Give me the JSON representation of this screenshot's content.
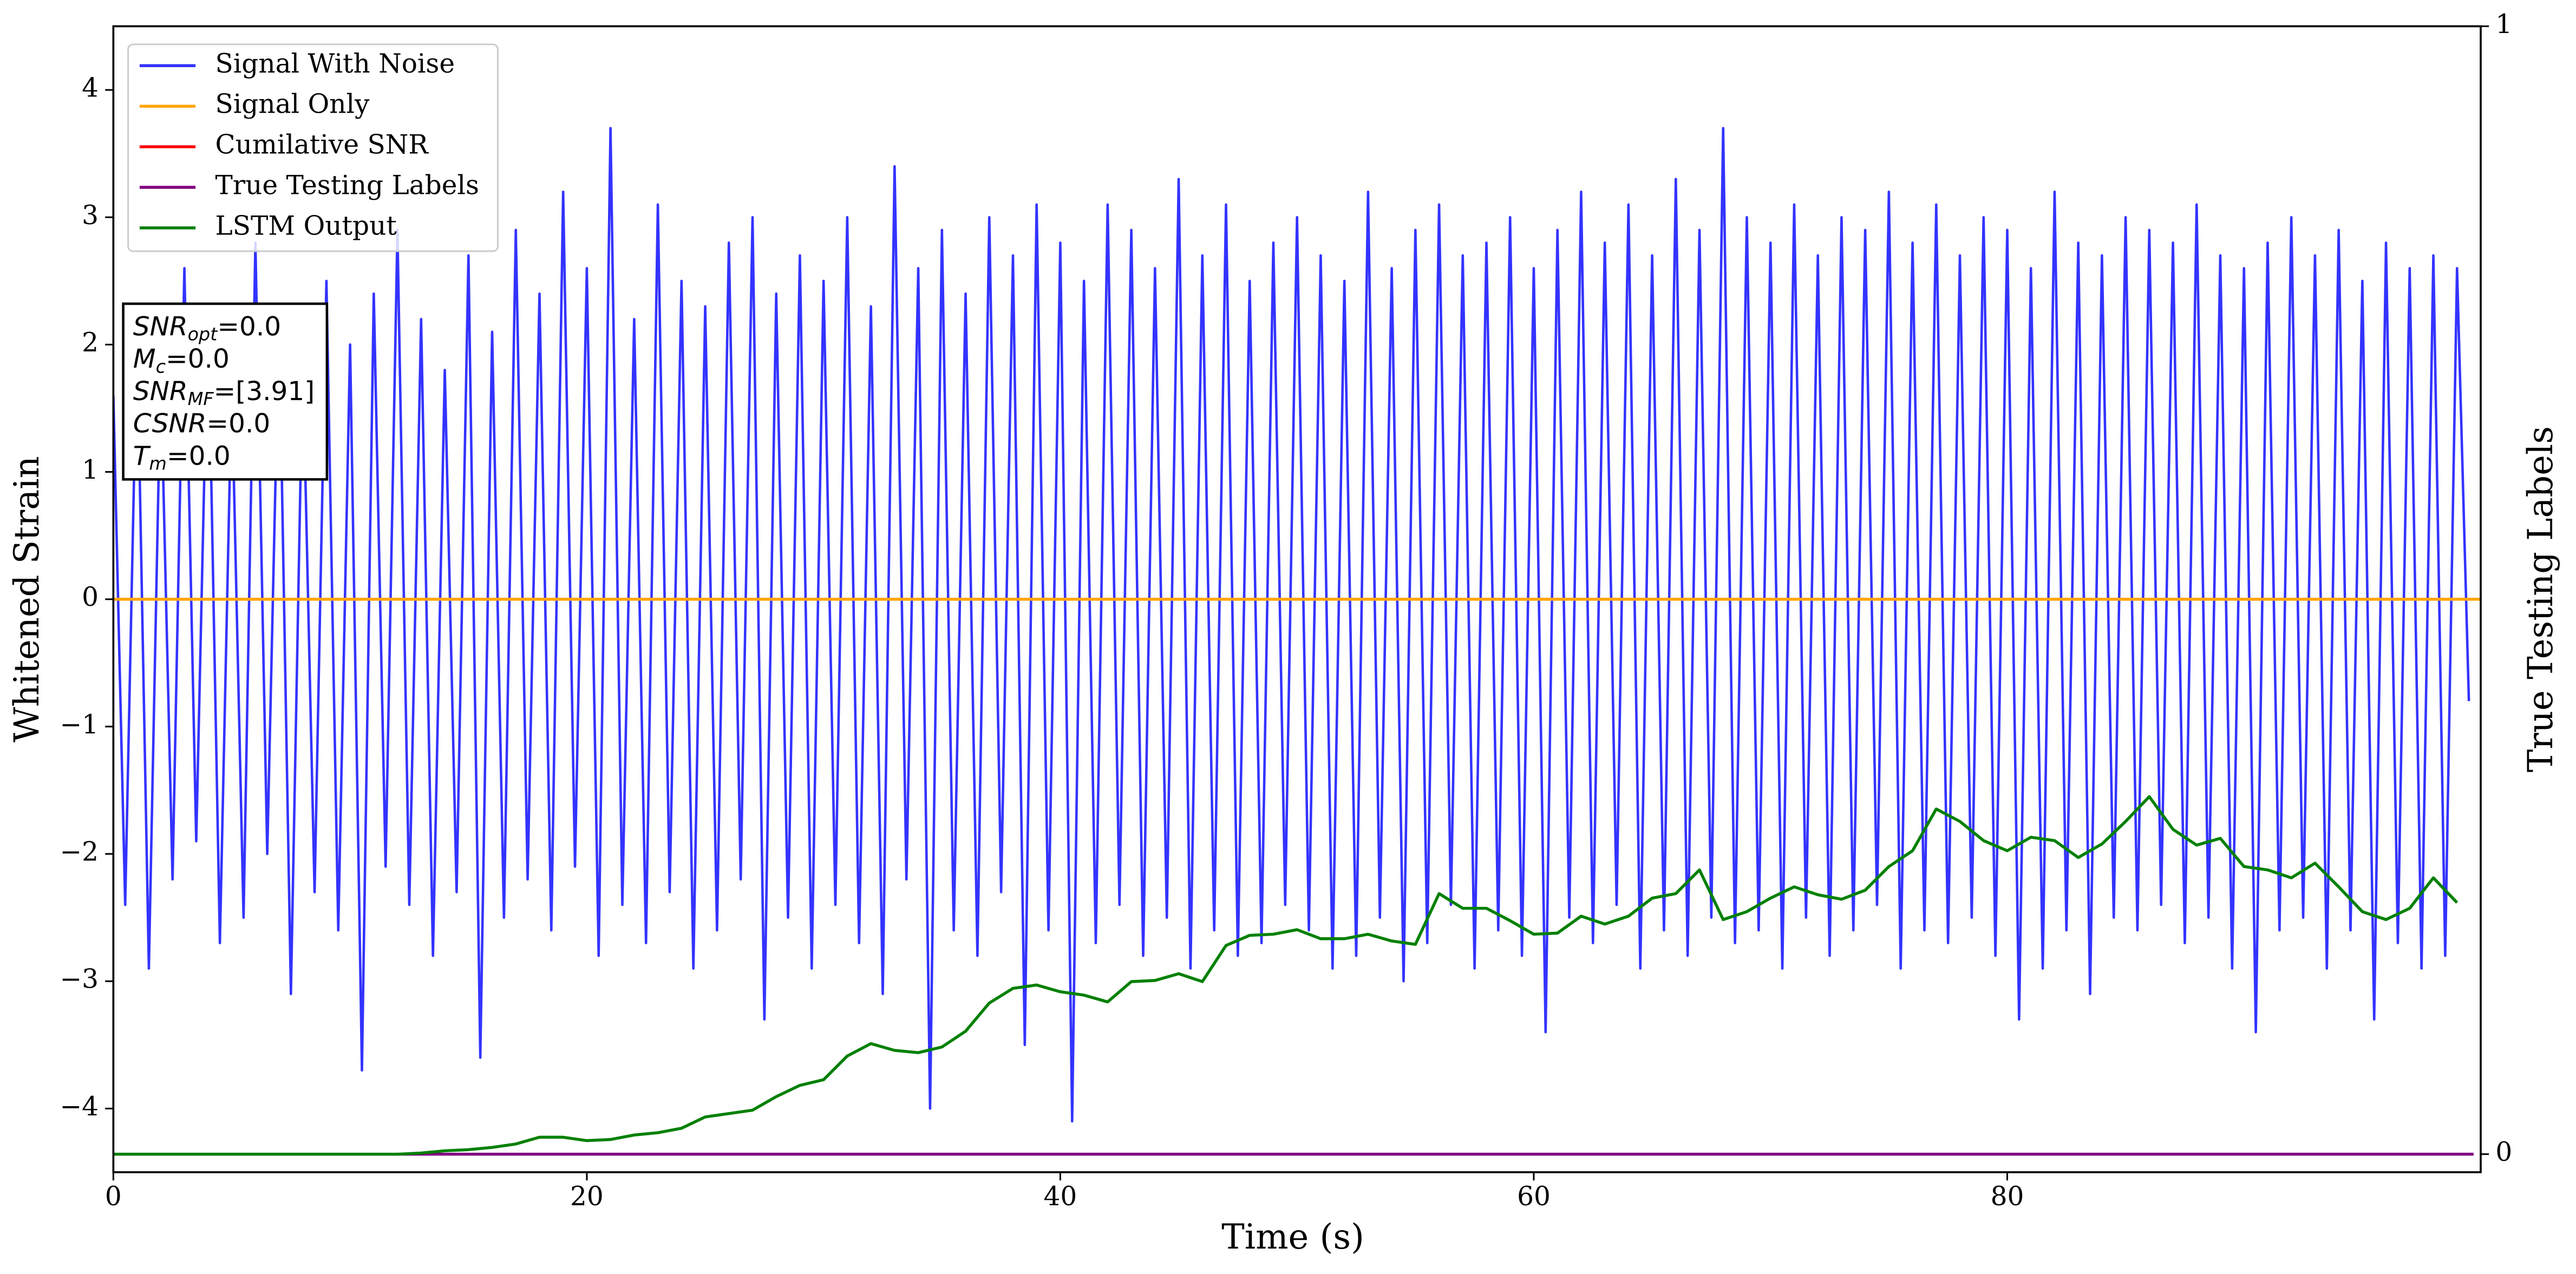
{
  "chart_data": {
    "type": "line",
    "xlabel": "Time (s)",
    "ylabel": "Whitened Strain",
    "y2label": "True Testing Labels",
    "xlim": [
      0,
      100
    ],
    "xticks": [
      0,
      20,
      40,
      60,
      80
    ],
    "ylim": [
      -4.5,
      4.5
    ],
    "yticks": [
      {
        "value": -4,
        "label": "−4"
      },
      {
        "value": -3,
        "label": "−3"
      },
      {
        "value": -2,
        "label": "−2"
      },
      {
        "value": -1,
        "label": "−1"
      },
      0,
      1,
      2,
      3,
      4
    ],
    "y2lim": [
      -0.016,
      1
    ],
    "y2ticks": [
      0,
      1
    ],
    "legend": "upper left",
    "annotation": [
      {
        "symbol": "SNR",
        "subscript": "opt",
        "text": "=0.0"
      },
      {
        "symbol": "M",
        "subscript": "c",
        "text": "=0.0"
      },
      {
        "symbol": "SNR",
        "subscript": "MF",
        "text": "=[3.91]"
      },
      {
        "symbol": "CSNR",
        "text": "=0.0"
      },
      {
        "symbol": "T",
        "subscript": "m",
        "text": "=0.0"
      }
    ],
    "series": [
      {
        "name": "Signal With Noise",
        "color": "#3333ff",
        "axis": "y",
        "x": [
          0,
          0.5,
          1,
          1.5,
          2,
          2.5,
          3,
          3.5,
          4,
          4.5,
          5,
          5.5,
          6,
          6.5,
          7,
          7.5,
          8,
          8.5,
          9,
          9.5,
          10,
          10.5,
          11,
          11.5,
          12,
          12.5,
          13,
          13.5,
          14,
          14.5,
          15,
          15.5,
          16,
          16.5,
          17,
          17.5,
          18,
          18.5,
          19,
          19.5,
          20,
          20.5,
          21,
          21.5,
          22,
          22.5,
          23,
          23.5,
          24,
          24.5,
          25,
          25.5,
          26,
          26.5,
          27,
          27.5,
          28,
          28.5,
          29,
          29.5,
          30,
          30.5,
          31,
          31.5,
          32,
          32.5,
          33,
          33.5,
          34,
          34.5,
          35,
          35.5,
          36,
          36.5,
          37,
          37.5,
          38,
          38.5,
          39,
          39.5,
          40,
          40.5,
          41,
          41.5,
          42,
          42.5,
          43,
          43.5,
          44,
          44.5,
          45,
          45.5,
          46,
          46.5,
          47,
          47.5,
          48,
          48.5,
          49,
          49.5,
          50,
          50.5,
          51,
          51.5,
          52,
          52.5,
          53,
          53.5,
          54,
          54.5,
          55,
          55.5,
          56,
          56.5,
          57,
          57.5,
          58,
          58.5,
          59,
          59.5,
          60,
          60.5,
          61,
          61.5,
          62,
          62.5,
          63,
          63.5,
          64,
          64.5,
          65,
          65.5,
          66,
          66.5,
          67,
          67.5,
          68,
          68.5,
          69,
          69.5,
          70,
          70.5,
          71,
          71.5,
          72,
          72.5,
          73,
          73.5,
          74,
          74.5,
          75,
          75.5,
          76,
          76.5,
          77,
          77.5,
          78,
          78.5,
          79,
          79.5,
          80,
          80.5,
          81,
          81.5,
          82,
          82.5,
          83,
          83.5,
          84,
          84.5,
          85,
          85.5,
          86,
          86.5,
          87,
          87.5,
          88,
          88.5,
          89,
          89.5,
          90,
          90.5,
          91,
          91.5,
          92,
          92.5,
          93,
          93.5,
          94,
          94.5,
          95,
          95.5,
          96,
          96.5,
          97,
          97.5,
          98,
          98.5,
          99,
          99.5
        ],
        "values": [
          1.6,
          -2.4,
          2.1,
          -2.9,
          1.8,
          -2.2,
          2.6,
          -1.9,
          2.3,
          -2.7,
          1.7,
          -2.5,
          2.8,
          -2.0,
          2.2,
          -3.1,
          1.9,
          -2.3,
          2.5,
          -2.6,
          2.0,
          -3.7,
          2.4,
          -2.1,
          2.9,
          -2.4,
          2.2,
          -2.8,
          1.8,
          -2.3,
          2.7,
          -3.6,
          2.1,
          -2.5,
          2.9,
          -2.2,
          2.4,
          -2.6,
          3.2,
          -2.1,
          2.6,
          -2.8,
          3.7,
          -2.4,
          2.2,
          -2.7,
          3.1,
          -2.3,
          2.5,
          -2.9,
          2.3,
          -2.6,
          2.8,
          -2.2,
          3.0,
          -3.3,
          2.4,
          -2.5,
          2.7,
          -2.9,
          2.5,
          -2.4,
          3.0,
          -2.7,
          2.3,
          -3.1,
          3.4,
          -2.2,
          2.6,
          -4.0,
          2.9,
          -2.6,
          2.4,
          -2.8,
          3.0,
          -2.3,
          2.7,
          -3.5,
          3.1,
          -2.6,
          2.8,
          -4.1,
          2.5,
          -2.7,
          3.1,
          -2.4,
          2.9,
          -2.8,
          2.6,
          -2.5,
          3.3,
          -2.9,
          2.7,
          -2.6,
          3.1,
          -2.8,
          2.5,
          -2.7,
          2.8,
          -2.4,
          3.0,
          -2.6,
          2.7,
          -2.9,
          2.5,
          -2.8,
          3.2,
          -2.5,
          2.6,
          -3.0,
          2.9,
          -2.7,
          3.1,
          -2.4,
          2.7,
          -2.9,
          2.8,
          -2.6,
          3.0,
          -2.8,
          2.6,
          -3.4,
          2.9,
          -2.5,
          3.2,
          -2.7,
          2.8,
          -2.4,
          3.1,
          -2.9,
          2.7,
          -2.6,
          3.3,
          -2.8,
          2.9,
          -2.5,
          3.7,
          -2.7,
          3.0,
          -2.6,
          2.8,
          -2.9,
          3.1,
          -2.5,
          2.7,
          -2.8,
          3.0,
          -2.6,
          2.9,
          -2.4,
          3.2,
          -2.9,
          2.8,
          -2.6,
          3.1,
          -2.7,
          2.7,
          -2.5,
          3.0,
          -2.8,
          2.9,
          -3.3,
          2.6,
          -2.9,
          3.2,
          -2.6,
          2.8,
          -3.1,
          2.7,
          -2.5,
          3.0,
          -2.6,
          2.9,
          -2.4,
          2.8,
          -2.7,
          3.1,
          -2.5,
          2.7,
          -2.9,
          2.6,
          -3.4,
          2.8,
          -2.6,
          3.0,
          -2.5,
          2.7,
          -2.9,
          2.9,
          -2.6,
          2.5,
          -3.3,
          2.8,
          -2.7,
          2.6,
          -2.9,
          2.7,
          -2.8,
          2.6,
          -0.8
        ]
      },
      {
        "name": "Signal Only",
        "color": "#ffa500",
        "axis": "y",
        "x": [
          0,
          100
        ],
        "values": [
          0,
          0
        ]
      },
      {
        "name": "Cumilative SNR",
        "color": "#ff0000",
        "axis": "y",
        "x": [
          0,
          100
        ],
        "values": [
          0,
          0
        ]
      },
      {
        "name": "True Testing Labels",
        "color": "#800080",
        "axis": "y2",
        "x": [
          0,
          99.7
        ],
        "values": [
          0,
          0
        ]
      },
      {
        "name": "LSTM Output",
        "color": "#008000",
        "axis": "y2",
        "x": [
          0,
          1,
          2,
          3,
          4,
          5,
          6,
          7,
          8,
          9,
          10,
          11,
          12,
          13,
          14,
          15,
          16,
          17,
          18,
          19,
          20,
          21,
          22,
          23,
          24,
          25,
          26,
          27,
          28,
          29,
          30,
          31,
          32,
          33,
          34,
          35,
          36,
          37,
          38,
          39,
          40,
          41,
          42,
          43,
          44,
          45,
          46,
          47,
          48,
          49,
          50,
          51,
          52,
          53,
          54,
          55,
          56,
          57,
          58,
          59,
          60,
          61,
          62,
          63,
          64,
          65,
          66,
          67,
          68,
          69,
          70,
          71,
          72,
          73,
          74,
          75,
          76,
          77,
          78,
          79,
          80,
          81,
          82,
          83,
          84,
          85,
          86,
          87,
          88,
          89,
          90,
          91,
          92,
          93,
          94,
          95,
          96,
          97,
          98,
          99
        ],
        "values": [
          0,
          0,
          0,
          0,
          0,
          0,
          0,
          0,
          0,
          0,
          0,
          0,
          0,
          0.001,
          0.003,
          0.004,
          0.006,
          0.009,
          0.015,
          0.015,
          0.012,
          0.013,
          0.017,
          0.019,
          0.023,
          0.033,
          0.036,
          0.039,
          0.051,
          0.061,
          0.066,
          0.087,
          0.098,
          0.092,
          0.09,
          0.095,
          0.109,
          0.134,
          0.147,
          0.15,
          0.144,
          0.141,
          0.135,
          0.153,
          0.154,
          0.16,
          0.153,
          0.185,
          0.194,
          0.195,
          0.199,
          0.191,
          0.191,
          0.195,
          0.189,
          0.186,
          0.231,
          0.218,
          0.218,
          0.207,
          0.195,
          0.196,
          0.211,
          0.204,
          0.211,
          0.227,
          0.231,
          0.252,
          0.208,
          0.215,
          0.227,
          0.237,
          0.23,
          0.226,
          0.234,
          0.255,
          0.269,
          0.306,
          0.295,
          0.278,
          0.269,
          0.281,
          0.278,
          0.263,
          0.275,
          0.295,
          0.317,
          0.288,
          0.274,
          0.28,
          0.255,
          0.252,
          0.245,
          0.258,
          0.237,
          0.215,
          0.208,
          0.218,
          0.245,
          0.223
        ]
      }
    ]
  }
}
